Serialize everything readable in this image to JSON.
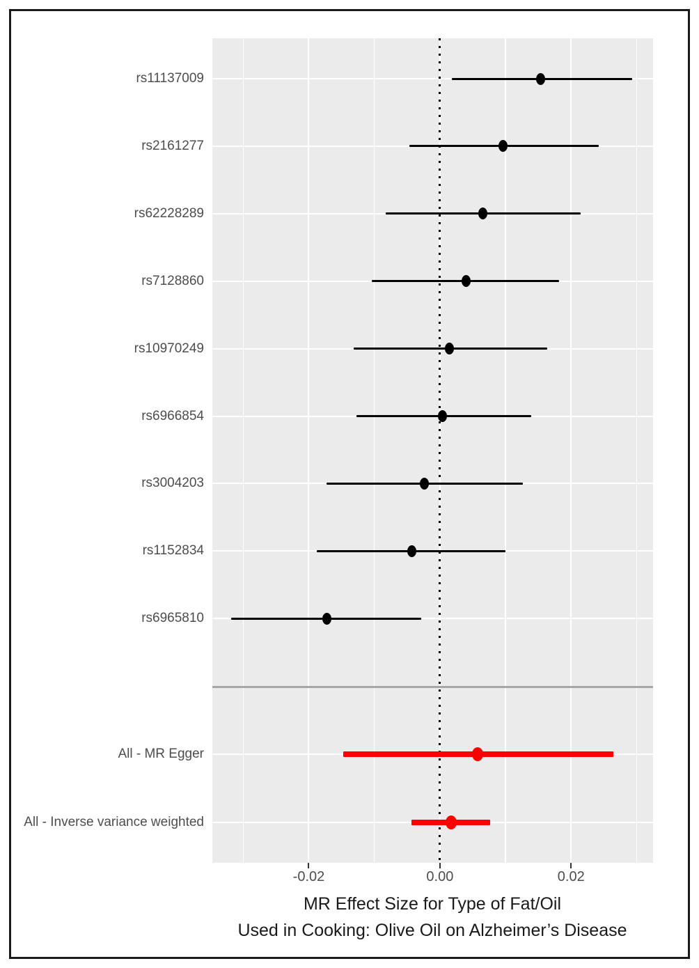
{
  "chart_data": {
    "type": "forest",
    "xlabel_line1": "MR Effect Size for Type of Fat/Oil",
    "xlabel_line2": "Used in Cooking: Olive Oil on Alzheimer’s Disease",
    "x_range": [
      -0.0347,
      0.0325
    ],
    "x_ticks": [
      {
        "value": -0.02,
        "label": "-0.02"
      },
      {
        "value": 0.0,
        "label": "0.00"
      },
      {
        "value": 0.02,
        "label": "0.02"
      }
    ],
    "x_minor_gridlines": [
      -0.03,
      -0.01,
      0.01,
      0.03
    ],
    "zero_reference_line": 0.0,
    "snp_rows": [
      {
        "label": "rs11137009",
        "estimate": 0.0154,
        "ci_lower": 0.0018,
        "ci_upper": 0.0293
      },
      {
        "label": "rs2161277",
        "estimate": 0.0096,
        "ci_lower": -0.0047,
        "ci_upper": 0.0242
      },
      {
        "label": "rs62228289",
        "estimate": 0.0065,
        "ci_lower": -0.0083,
        "ci_upper": 0.0215
      },
      {
        "label": "rs7128860",
        "estimate": 0.004,
        "ci_lower": -0.0104,
        "ci_upper": 0.0182
      },
      {
        "label": "rs10970249",
        "estimate": 0.0015,
        "ci_lower": -0.0132,
        "ci_upper": 0.0164
      },
      {
        "label": "rs6966854",
        "estimate": 0.0004,
        "ci_lower": -0.0127,
        "ci_upper": 0.0139
      },
      {
        "label": "rs3004203",
        "estimate": -0.0024,
        "ci_lower": -0.0173,
        "ci_upper": 0.0126
      },
      {
        "label": "rs1152834",
        "estimate": -0.0043,
        "ci_lower": -0.0188,
        "ci_upper": 0.01
      },
      {
        "label": "rs6965810",
        "estimate": -0.0172,
        "ci_lower": -0.0318,
        "ci_upper": -0.0028
      }
    ],
    "summary_rows": [
      {
        "label": "All - MR Egger",
        "estimate": 0.0058,
        "ci_lower": -0.0147,
        "ci_upper": 0.0264
      },
      {
        "label": "All - Inverse variance weighted",
        "estimate": 0.0017,
        "ci_lower": -0.0043,
        "ci_upper": 0.0077
      }
    ],
    "colors": {
      "snp_series": "#000000",
      "summary_series": "#ff0000",
      "panel_background": "#ebebeb",
      "gridline": "#ffffff",
      "separator": "#a6a6a6",
      "axis_text": "#4d4d4d",
      "frame_border": "#1a1a1a"
    },
    "legend": "none",
    "grid": "on"
  }
}
